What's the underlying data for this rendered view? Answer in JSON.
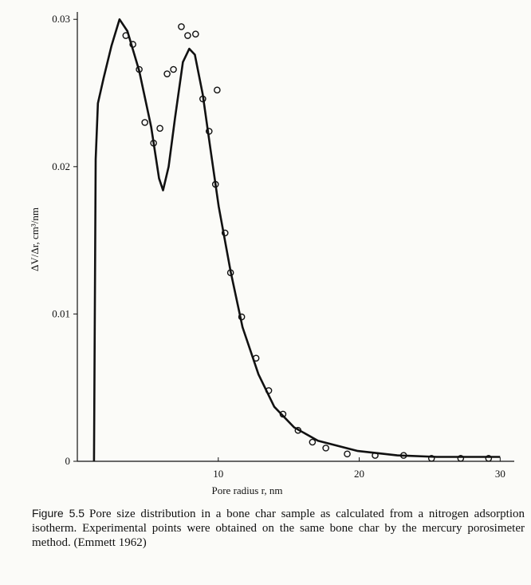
{
  "chart_data": {
    "type": "line",
    "x_label": "Pore radius r, nm",
    "y_label": "ΔV/Δr, cm³/nm",
    "xlim": [
      0,
      31
    ],
    "ylim": [
      0,
      0.0305
    ],
    "xticks": [
      10,
      20,
      30
    ],
    "yticks": [
      0,
      0.01,
      0.02,
      0.03
    ],
    "series": [
      {
        "mode": "line",
        "color": "#111111",
        "x": [
          1.18,
          1.3,
          1.46,
          1.86,
          2.42,
          2.99,
          3.55,
          4.39,
          5.24,
          5.8,
          6.08,
          6.48,
          6.93,
          7.49,
          7.94,
          8.34,
          8.9,
          9.46,
          10.03,
          10.87,
          11.72,
          12.85,
          13.97,
          15.38,
          17.07,
          19.9,
          22.7,
          25.5,
          30.0
        ],
        "values": [
          0,
          0.0205,
          0.0243,
          0.026,
          0.0282,
          0.03,
          0.0292,
          0.0265,
          0.0227,
          0.0192,
          0.0184,
          0.02,
          0.0233,
          0.0271,
          0.028,
          0.0276,
          0.0249,
          0.0211,
          0.0173,
          0.0129,
          0.0091,
          0.0059,
          0.0037,
          0.0023,
          0.0014,
          0.0007,
          0.0004,
          0.0003,
          0.0003
        ]
      },
      {
        "mode": "markers",
        "color": "#111111",
        "x": [
          3.44,
          3.94,
          4.39,
          4.79,
          5.41,
          5.86,
          6.37,
          6.82,
          7.38,
          7.83,
          8.39,
          8.9,
          9.35,
          9.92,
          9.8,
          10.48,
          10.87,
          11.66,
          12.68,
          13.58,
          14.59,
          15.66,
          16.68,
          17.63,
          19.15,
          21.13,
          23.15,
          25.13,
          27.2,
          29.18
        ],
        "values": [
          0.0289,
          0.0283,
          0.0266,
          0.023,
          0.0216,
          0.0226,
          0.0263,
          0.0266,
          0.0295,
          0.0289,
          0.029,
          0.0246,
          0.0224,
          0.0252,
          0.0188,
          0.0155,
          0.0128,
          0.0098,
          0.007,
          0.0048,
          0.0032,
          0.0021,
          0.0013,
          0.0009,
          0.0005,
          0.0004,
          0.0004,
          0.0002,
          0.0002,
          0.0002
        ]
      }
    ]
  },
  "caption": {
    "label": "Figure 5.5",
    "text": "Pore size distribution in a bone char sample as calculated from a nitrogen adsorption isotherm. Experimental points were obtained on the same bone char by the mercury porosimeter method. (Emmett 1962)"
  }
}
